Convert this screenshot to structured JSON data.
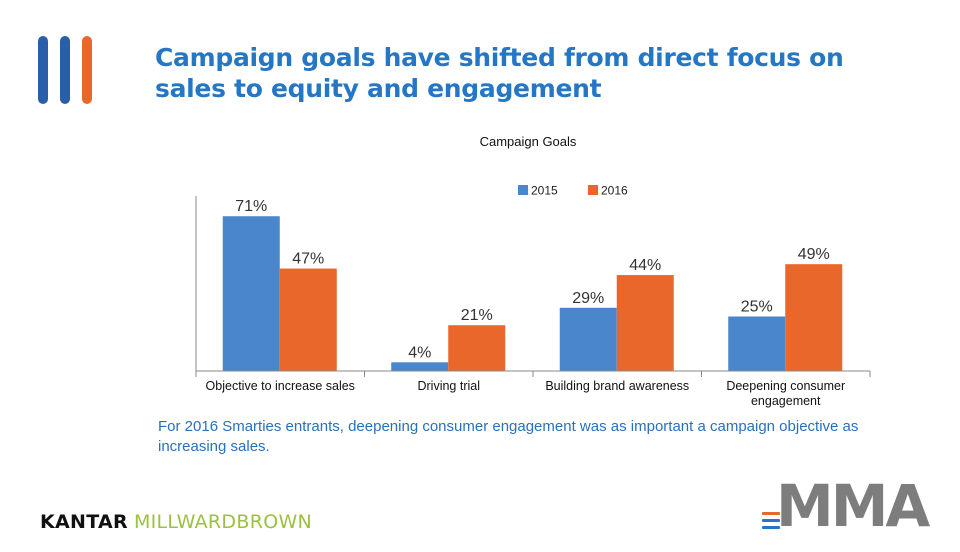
{
  "slide": {
    "title": "Campaign goals have shifted from direct focus on sales to equity and engagement",
    "caption": "For 2016 Smarties entrants, deepening consumer engagement was as important a campaign objective as increasing sales."
  },
  "logos": {
    "kantar_part1": "KANTAR",
    "kantar_part2": "MILLWARDBROWN",
    "mma": "MMA"
  },
  "colors": {
    "title": "#2577c6",
    "series_2015": "#4a86cc",
    "series_2016": "#e9672a",
    "caption": "#2a6fbf"
  },
  "chart_data": {
    "type": "bar",
    "title": "Campaign Goals",
    "categories": [
      "Objective to increase sales",
      "Driving trial",
      "Building brand awareness",
      "Deepening consumer engagement"
    ],
    "series": [
      {
        "name": "2015",
        "values": [
          71,
          4,
          29,
          25
        ],
        "labels": [
          "71%",
          "4%",
          "29%",
          "25%"
        ]
      },
      {
        "name": "2016",
        "values": [
          47,
          21,
          44,
          49
        ],
        "labels": [
          "47%",
          "21%",
          "44%",
          "49%"
        ]
      }
    ],
    "ylim": [
      0,
      75
    ],
    "value_unit": "%",
    "legend_position": "top",
    "grid": false
  }
}
